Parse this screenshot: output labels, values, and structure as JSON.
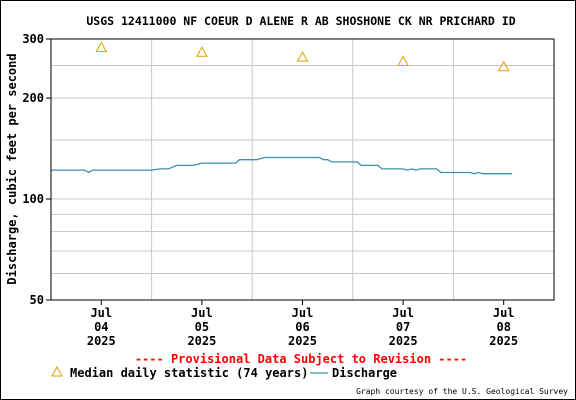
{
  "chart_data": {
    "type": "line",
    "title": "USGS 12411000 NF COEUR D ALENE R AB SHOSHONE CK NR PRICHARD ID",
    "ylabel": "Discharge, cubic feet per second",
    "xlabel": "",
    "y_scale": "log",
    "ylim": [
      50,
      300
    ],
    "y_ticks": [
      {
        "value": 300,
        "label": "300"
      },
      {
        "value": 200,
        "label": "200"
      },
      {
        "value": 100,
        "label": "100"
      },
      {
        "value": 50,
        "label": "50"
      }
    ],
    "y_minor_gridlines": [
      60,
      70,
      80,
      90,
      150,
      250
    ],
    "grid": true,
    "xlim": [
      "2025-07-03T12:00",
      "2025-07-08T12:00"
    ],
    "x_ticks": [
      {
        "value": "2025-07-04T00:00",
        "label": [
          "Jul",
          "04",
          "2025"
        ]
      },
      {
        "value": "2025-07-05T00:00",
        "label": [
          "Jul",
          "05",
          "2025"
        ]
      },
      {
        "value": "2025-07-06T00:00",
        "label": [
          "Jul",
          "06",
          "2025"
        ]
      },
      {
        "value": "2025-07-07T00:00",
        "label": [
          "Jul",
          "07",
          "2025"
        ]
      },
      {
        "value": "2025-07-08T00:00",
        "label": [
          "Jul",
          "08",
          "2025"
        ]
      }
    ],
    "x_gridlines": [
      "2025-07-04T12:00",
      "2025-07-05T12:00",
      "2025-07-06T12:00",
      "2025-07-07T12:00"
    ],
    "series": [
      {
        "name": "Discharge",
        "style": "line",
        "color": "#3f8fb0",
        "points": [
          [
            "2025-07-03T12:00",
            122
          ],
          [
            "2025-07-03T20:00",
            122
          ],
          [
            "2025-07-03T21:00",
            120
          ],
          [
            "2025-07-03T22:00",
            122
          ],
          [
            "2025-07-04T12:00",
            122
          ],
          [
            "2025-07-04T14:00",
            123
          ],
          [
            "2025-07-04T16:00",
            123
          ],
          [
            "2025-07-04T18:00",
            126
          ],
          [
            "2025-07-04T22:00",
            126
          ],
          [
            "2025-07-05T00:00",
            128
          ],
          [
            "2025-07-05T08:00",
            128
          ],
          [
            "2025-07-05T09:00",
            131
          ],
          [
            "2025-07-05T13:00",
            131
          ],
          [
            "2025-07-05T14:00",
            132
          ],
          [
            "2025-07-05T15:00",
            133
          ],
          [
            "2025-07-06T00:00",
            133
          ],
          [
            "2025-07-06T04:00",
            133
          ],
          [
            "2025-07-06T05:00",
            131
          ],
          [
            "2025-07-06T06:00",
            131
          ],
          [
            "2025-07-06T07:00",
            129
          ],
          [
            "2025-07-06T13:00",
            129
          ],
          [
            "2025-07-06T14:00",
            126
          ],
          [
            "2025-07-06T18:00",
            126
          ],
          [
            "2025-07-06T19:00",
            123
          ],
          [
            "2025-07-07T00:00",
            123
          ],
          [
            "2025-07-07T01:00",
            122
          ],
          [
            "2025-07-07T02:00",
            123
          ],
          [
            "2025-07-07T03:00",
            122
          ],
          [
            "2025-07-07T04:00",
            123
          ],
          [
            "2025-07-07T08:00",
            123
          ],
          [
            "2025-07-07T09:00",
            120
          ],
          [
            "2025-07-07T16:00",
            120
          ],
          [
            "2025-07-07T17:00",
            119
          ],
          [
            "2025-07-07T18:00",
            120
          ],
          [
            "2025-07-07T19:00",
            119
          ],
          [
            "2025-07-08T00:00",
            119
          ],
          [
            "2025-07-08T02:00",
            119
          ]
        ]
      },
      {
        "name": "Median daily statistic (74 years)",
        "style": "marker-triangle",
        "color": "#e0a000",
        "points": [
          [
            "2025-07-04T00:00",
            283
          ],
          [
            "2025-07-05T00:00",
            274
          ],
          [
            "2025-07-06T00:00",
            265
          ],
          [
            "2025-07-07T00:00",
            257
          ],
          [
            "2025-07-08T00:00",
            248
          ]
        ]
      }
    ],
    "legend_placement": "bottom",
    "annotation": "---- Provisional Data Subject to Revision ----",
    "annotation_color": "#ff0000",
    "credit": "Graph courtesy of the U.S. Geological Survey"
  },
  "legend": {
    "median_label": "Median daily statistic (74 years)",
    "discharge_label": "Discharge"
  }
}
